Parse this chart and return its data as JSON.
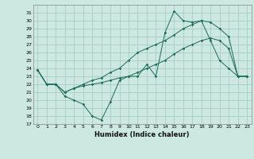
{
  "title": "",
  "xlabel": "Humidex (Indice chaleur)",
  "background_color": "#cde8e0",
  "grid_color": "#a0c8bc",
  "line_color": "#1a6b5a",
  "series": {
    "line1": {
      "x": [
        0,
        1,
        2,
        3,
        4,
        5,
        6,
        7,
        8,
        9,
        10,
        11,
        12,
        13,
        14,
        15,
        16,
        17,
        18,
        19,
        20,
        21,
        22,
        23
      ],
      "y": [
        23.8,
        22.0,
        22.0,
        20.5,
        20.0,
        19.5,
        18.0,
        17.5,
        19.8,
        22.5,
        23.0,
        23.0,
        24.5,
        23.0,
        28.5,
        31.2,
        30.0,
        29.8,
        30.0,
        27.5,
        25.0,
        24.0,
        23.0,
        23.0
      ]
    },
    "line2": {
      "x": [
        0,
        1,
        2,
        3,
        4,
        5,
        6,
        7,
        8,
        9,
        10,
        11,
        12,
        13,
        14,
        15,
        16,
        17,
        18,
        19,
        20,
        21,
        22,
        23
      ],
      "y": [
        23.8,
        22.0,
        22.0,
        21.0,
        21.5,
        22.0,
        22.5,
        22.8,
        23.5,
        24.0,
        25.0,
        26.0,
        26.5,
        27.0,
        27.5,
        28.2,
        29.0,
        29.5,
        30.0,
        29.8,
        29.0,
        28.0,
        23.0,
        23.0
      ]
    },
    "line3": {
      "x": [
        0,
        1,
        2,
        3,
        4,
        5,
        6,
        7,
        8,
        9,
        10,
        11,
        12,
        13,
        14,
        15,
        16,
        17,
        18,
        19,
        20,
        21,
        22,
        23
      ],
      "y": [
        23.8,
        22.0,
        22.0,
        21.0,
        21.5,
        21.8,
        22.0,
        22.2,
        22.5,
        22.8,
        23.0,
        23.5,
        24.0,
        24.5,
        25.0,
        25.8,
        26.5,
        27.0,
        27.5,
        27.8,
        27.5,
        26.5,
        23.0,
        23.0
      ]
    }
  },
  "xlim": [
    -0.5,
    23.5
  ],
  "ylim": [
    17,
    32
  ],
  "yticks": [
    17,
    18,
    19,
    20,
    21,
    22,
    23,
    24,
    25,
    26,
    27,
    28,
    29,
    30,
    31
  ],
  "xticks": [
    0,
    1,
    2,
    3,
    4,
    5,
    6,
    7,
    8,
    9,
    10,
    11,
    12,
    13,
    14,
    15,
    16,
    17,
    18,
    19,
    20,
    21,
    22,
    23
  ]
}
